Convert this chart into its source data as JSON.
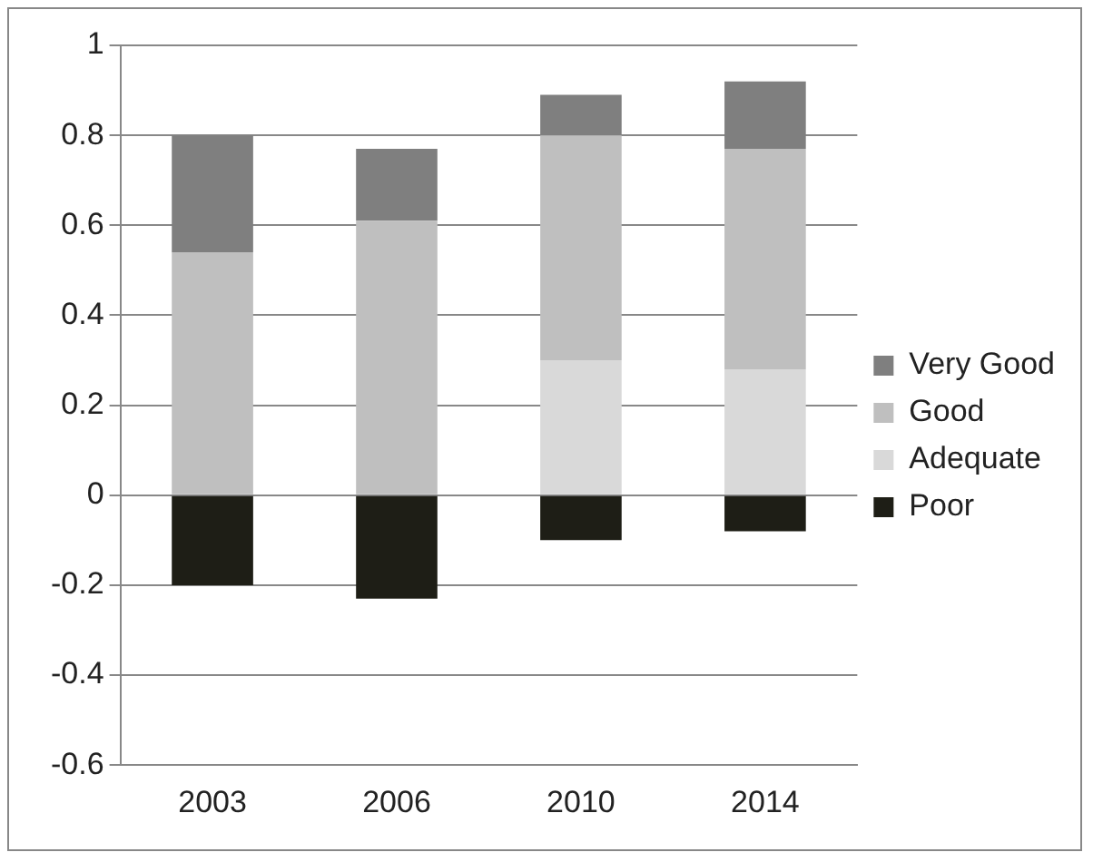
{
  "chart_data": {
    "type": "bar",
    "stacked": true,
    "categories": [
      "2003",
      "2006",
      "2010",
      "2014"
    ],
    "series": [
      {
        "name": "Poor",
        "color": "#1e1e16",
        "values": [
          -0.2,
          -0.23,
          -0.1,
          -0.08
        ]
      },
      {
        "name": "Adequate",
        "color": "#d9d9d9",
        "values": [
          0,
          0,
          0.3,
          0.28
        ]
      },
      {
        "name": "Good",
        "color": "#bfbfbf",
        "values": [
          0.54,
          0.61,
          0.5,
          0.49
        ]
      },
      {
        "name": "Very Good",
        "color": "#7f7f7f",
        "values": [
          0.26,
          0.16,
          0.09,
          0.15
        ]
      }
    ],
    "ylim": [
      -0.6,
      1
    ],
    "yticks": [
      -0.6,
      -0.4,
      -0.2,
      0,
      0.2,
      0.4,
      0.6,
      0.8,
      1
    ],
    "grid": "y",
    "legend": "right"
  }
}
